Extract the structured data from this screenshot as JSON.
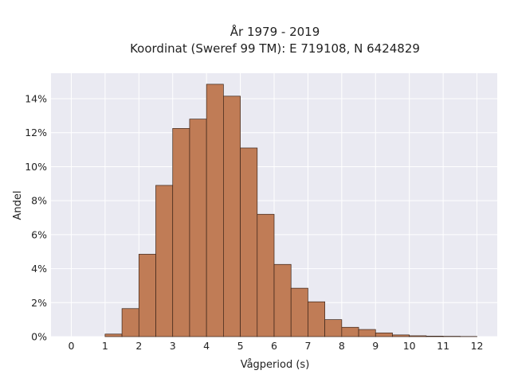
{
  "chart_data": {
    "type": "bar",
    "title_line1": "År 1979 - 2019",
    "title_line2": "Koordinat (Sweref 99 TM): E 719108, N 6424829",
    "xlabel": "Vågperiod (s)",
    "ylabel": "Andel",
    "xlim": [
      -0.6,
      12.6
    ],
    "ylim": [
      0,
      15.5
    ],
    "xticks": [
      0,
      1,
      2,
      3,
      4,
      5,
      6,
      7,
      8,
      9,
      10,
      11,
      12
    ],
    "yticks": [
      0,
      2,
      4,
      6,
      8,
      10,
      12,
      14
    ],
    "ytick_labels": [
      "0%",
      "2%",
      "4%",
      "6%",
      "8%",
      "10%",
      "12%",
      "14%"
    ],
    "bin_width": 0.5,
    "bins_start": [
      1.0,
      1.5,
      2.0,
      2.5,
      3.0,
      3.5,
      4.0,
      4.5,
      5.0,
      5.5,
      6.0,
      6.5,
      7.0,
      7.5,
      8.0,
      8.5,
      9.0,
      9.5,
      10.0,
      10.5,
      11.0,
      11.5
    ],
    "values": [
      0.15,
      1.65,
      4.85,
      8.9,
      12.25,
      12.8,
      14.85,
      14.15,
      11.1,
      7.2,
      4.25,
      2.85,
      2.05,
      1.0,
      0.55,
      0.42,
      0.22,
      0.1,
      0.05,
      0.03,
      0.02,
      0.01
    ],
    "grid": true,
    "colors": {
      "bar_fill": "#c07c56",
      "bar_edge": "#3a2318",
      "plot_bg": "#eaeaf2",
      "grid": "#ffffff"
    }
  }
}
